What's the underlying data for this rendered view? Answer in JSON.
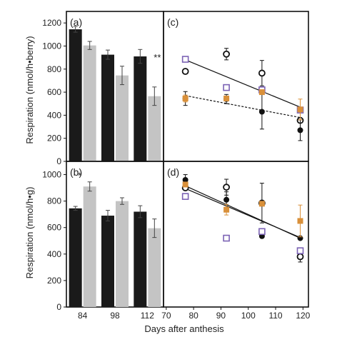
{
  "figure": {
    "xlabel": "Days after anthesis",
    "ylabel_top": "Respiration (nmol/h•berry)",
    "ylabel_bottom": "Respiration (nmol/h•g)"
  },
  "colors": {
    "black_bar": "#1a1a1a",
    "gray_bar": "#c4c4c4",
    "purple": "#7b62b4",
    "orange": "#d9903a",
    "black": "#111111"
  },
  "chart_data": [
    {
      "panel": "(a)",
      "type": "bar",
      "categories": [
        "84",
        "98",
        "112"
      ],
      "ylim": [
        0,
        1300
      ],
      "yticks": [
        0,
        200,
        400,
        600,
        800,
        1000,
        1200
      ],
      "series": [
        {
          "color": "black",
          "values": [
            1145,
            925,
            910
          ],
          "errors": [
            25,
            40,
            60
          ]
        },
        {
          "color": "gray",
          "values": [
            1005,
            745,
            565
          ],
          "errors": [
            35,
            80,
            80
          ]
        }
      ],
      "annotations": [
        {
          "category": "112",
          "text": "**"
        }
      ]
    },
    {
      "panel": "(b)",
      "type": "bar",
      "categories": [
        "84",
        "98",
        "112"
      ],
      "xticklabels": [
        "84",
        "98",
        "112"
      ],
      "ylim": [
        0,
        1100
      ],
      "yticks": [
        0,
        200,
        400,
        600,
        800,
        1000
      ],
      "series": [
        {
          "color": "black",
          "values": [
            745,
            690,
            720
          ],
          "errors": [
            15,
            40,
            45
          ]
        },
        {
          "color": "gray",
          "values": [
            910,
            800,
            595
          ],
          "errors": [
            35,
            25,
            70
          ]
        }
      ],
      "annotations": [
        {
          "category": "84",
          "text": "*"
        }
      ]
    },
    {
      "panel": "(c)",
      "type": "scatter",
      "xlim": [
        69,
        122
      ],
      "ylim": [
        0,
        1300
      ],
      "yticks": [
        0,
        200,
        400,
        600,
        800,
        1000,
        1200
      ],
      "series": [
        {
          "marker": "open-circle",
          "points": [
            {
              "x": 77,
              "y": 780,
              "e": 0
            },
            {
              "x": 92,
              "y": 930,
              "e": 50
            },
            {
              "x": 105,
              "y": 765,
              "e": 110
            },
            {
              "x": 119,
              "y": 355,
              "e": 0
            }
          ]
        },
        {
          "marker": "filled-circle",
          "points": [
            {
              "x": 77,
              "y": 545,
              "e": 60
            },
            {
              "x": 92,
              "y": 540,
              "e": 40
            },
            {
              "x": 105,
              "y": 430,
              "e": 150
            },
            {
              "x": 119,
              "y": 270,
              "e": 90
            }
          ]
        },
        {
          "marker": "open-square-purple",
          "points": [
            {
              "x": 77,
              "y": 885,
              "e": 0
            },
            {
              "x": 92,
              "y": 640,
              "e": 0
            },
            {
              "x": 105,
              "y": 620,
              "e": 0
            },
            {
              "x": 119,
              "y": 445,
              "e": 0
            }
          ]
        },
        {
          "marker": "filled-square-orange",
          "points": [
            {
              "x": 77,
              "y": 545,
              "e": 30
            },
            {
              "x": 92,
              "y": 545,
              "e": 0
            },
            {
              "x": 105,
              "y": 600,
              "e": 0
            },
            {
              "x": 119,
              "y": 450,
              "e": 90
            }
          ]
        }
      ],
      "lines": [
        {
          "style": "solid",
          "x": [
            77,
            119
          ],
          "y": [
            880,
            470
          ]
        },
        {
          "style": "dashed",
          "x": [
            77,
            119
          ],
          "y": [
            570,
            380
          ]
        }
      ]
    },
    {
      "panel": "(d)",
      "type": "scatter",
      "xlim": [
        69,
        122
      ],
      "xticks": [
        70,
        80,
        90,
        100,
        110,
        120
      ],
      "ylim": [
        0,
        1100
      ],
      "yticks": [
        0,
        200,
        400,
        600,
        800,
        1000
      ],
      "series": [
        {
          "marker": "open-circle",
          "points": [
            {
              "x": 77,
              "y": 900,
              "e": 0
            },
            {
              "x": 92,
              "y": 905,
              "e": 60
            },
            {
              "x": 105,
              "y": 785,
              "e": 150
            },
            {
              "x": 119,
              "y": 380,
              "e": 40
            }
          ]
        },
        {
          "marker": "filled-circle",
          "points": [
            {
              "x": 77,
              "y": 960,
              "e": 40
            },
            {
              "x": 92,
              "y": 810,
              "e": 60
            },
            {
              "x": 105,
              "y": 535,
              "e": 0
            },
            {
              "x": 119,
              "y": 520,
              "e": 0
            }
          ]
        },
        {
          "marker": "open-square-purple",
          "points": [
            {
              "x": 77,
              "y": 835,
              "e": 0
            },
            {
              "x": 92,
              "y": 520,
              "e": 0
            },
            {
              "x": 105,
              "y": 570,
              "e": 0
            },
            {
              "x": 119,
              "y": 425,
              "e": 0
            }
          ]
        },
        {
          "marker": "filled-square-orange",
          "points": [
            {
              "x": 77,
              "y": 925,
              "e": 0
            },
            {
              "x": 92,
              "y": 735,
              "e": 40
            },
            {
              "x": 105,
              "y": 780,
              "e": 0
            },
            {
              "x": 119,
              "y": 650,
              "e": 120
            }
          ]
        }
      ],
      "lines": [
        {
          "style": "solid",
          "x": [
            77,
            119
          ],
          "y": [
            915,
            520
          ]
        },
        {
          "style": "solid",
          "x": [
            77,
            119
          ],
          "y": [
            895,
            525
          ]
        }
      ]
    }
  ]
}
